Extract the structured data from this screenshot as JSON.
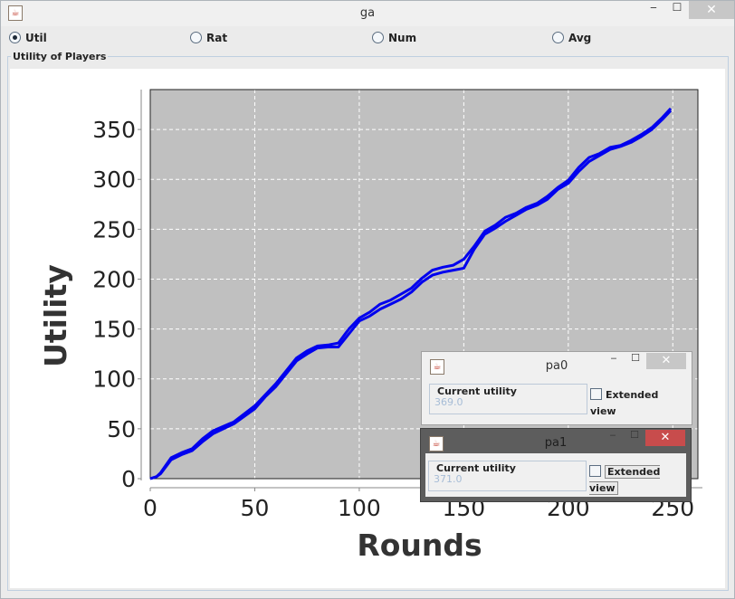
{
  "window": {
    "title": "ga",
    "min": "‒",
    "max": "☐",
    "close": "✕"
  },
  "radios": [
    {
      "label": "Util",
      "selected": true
    },
    {
      "label": "Rat",
      "selected": false
    },
    {
      "label": "Num",
      "selected": false
    },
    {
      "label": "Avg",
      "selected": false
    }
  ],
  "panel": {
    "title": "Utility of Players"
  },
  "chart_data": {
    "type": "line",
    "xlabel": "Rounds",
    "ylabel": "Utility",
    "xlim": [
      0,
      262
    ],
    "ylim": [
      0,
      390
    ],
    "xticks": [
      0,
      50,
      100,
      150,
      200,
      250
    ],
    "yticks": [
      0,
      50,
      100,
      150,
      200,
      250,
      300,
      350
    ],
    "grid": true,
    "plot_background": "#c0c0c0",
    "line_color": "#0000ee",
    "series": [
      {
        "x": [
          0,
          3,
          5,
          10,
          15,
          20,
          25,
          30,
          40,
          50,
          55,
          60,
          65,
          70,
          75,
          80,
          85,
          90,
          95,
          100,
          105,
          110,
          115,
          120,
          125,
          130,
          135,
          140,
          145,
          150,
          155,
          160,
          165,
          170,
          175,
          180,
          185,
          190,
          195,
          200,
          205,
          210,
          215,
          220,
          225,
          230,
          235,
          240,
          245,
          249
        ],
        "values": [
          0,
          2,
          5,
          19,
          24,
          28,
          37,
          45,
          55,
          70,
          82,
          92,
          105,
          118,
          125,
          131,
          132,
          132,
          145,
          158,
          163,
          170,
          175,
          180,
          187,
          197,
          204,
          207,
          209,
          211,
          230,
          245,
          251,
          258,
          264,
          270,
          274,
          280,
          290,
          296,
          308,
          318,
          324,
          330,
          333,
          337,
          343,
          350,
          360,
          369
        ]
      },
      {
        "x": [
          0,
          3,
          5,
          10,
          15,
          20,
          25,
          30,
          40,
          50,
          55,
          60,
          65,
          70,
          75,
          80,
          85,
          90,
          95,
          100,
          105,
          110,
          115,
          120,
          125,
          130,
          135,
          140,
          145,
          150,
          155,
          160,
          165,
          170,
          175,
          180,
          185,
          190,
          195,
          200,
          205,
          210,
          215,
          220,
          225,
          230,
          235,
          240,
          245,
          249
        ],
        "values": [
          0,
          2,
          6,
          21,
          26,
          30,
          40,
          48,
          57,
          73,
          84,
          95,
          108,
          121,
          128,
          133,
          134,
          136,
          150,
          161,
          167,
          175,
          179,
          185,
          191,
          201,
          209,
          212,
          214,
          220,
          233,
          248,
          254,
          262,
          266,
          272,
          276,
          283,
          292,
          299,
          312,
          322,
          326,
          332,
          334,
          339,
          345,
          352,
          362,
          371
        ]
      }
    ]
  },
  "popups": [
    {
      "title": "pa0",
      "group": "Current utility",
      "value": "369.0",
      "extended": "Extended view",
      "min": "‒",
      "max": "☐",
      "close": "✕"
    },
    {
      "title": "pa1",
      "group": "Current utility",
      "value": "371.0",
      "extended": "Extended view",
      "min": "‒",
      "max": "☐",
      "close": "✕"
    }
  ]
}
